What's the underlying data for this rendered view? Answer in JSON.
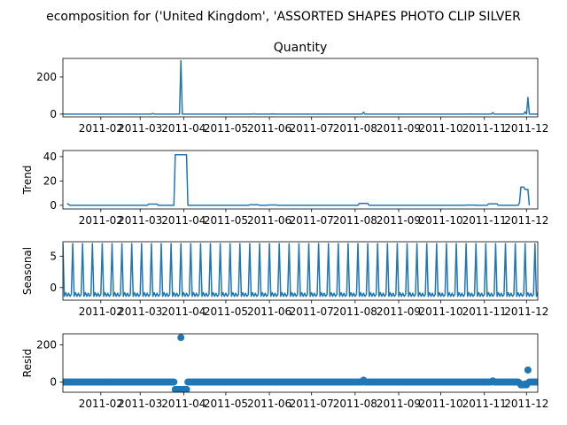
{
  "figure": {
    "title": "ecomposition for ('United Kingdom', 'ASSORTED SHAPES PHOTO CLIP SILVER"
  },
  "colors": {
    "series": "#1f77b4",
    "axes": "#000000",
    "background": "#ffffff"
  },
  "chart_data": [
    {
      "type": "line",
      "title": "Quantity",
      "ylabel": "",
      "x_range": [
        "2011-01-05",
        "2011-12-09"
      ],
      "ylim": [
        -15,
        300
      ],
      "yticks": [
        0,
        200
      ],
      "xtick_labels": [
        "2011-02",
        "2011-03",
        "2011-04",
        "2011-05",
        "2011-06",
        "2011-07",
        "2011-08",
        "2011-09",
        "2011-10",
        "2011-11",
        "2011-12"
      ],
      "grid": false,
      "points": [
        [
          "2011-01-05",
          0
        ],
        [
          "2011-03-09",
          0
        ],
        [
          "2011-03-10",
          3
        ],
        [
          "2011-03-11",
          0
        ],
        [
          "2011-03-29",
          0
        ],
        [
          "2011-03-30",
          288
        ],
        [
          "2011-03-31",
          0
        ],
        [
          "2011-05-20",
          0
        ],
        [
          "2011-05-21",
          2
        ],
        [
          "2011-05-22",
          0
        ],
        [
          "2011-06-02",
          0
        ],
        [
          "2011-06-03",
          1
        ],
        [
          "2011-06-04",
          0
        ],
        [
          "2011-08-06",
          0
        ],
        [
          "2011-08-07",
          10
        ],
        [
          "2011-08-08",
          0
        ],
        [
          "2011-10-21",
          0
        ],
        [
          "2011-10-22",
          1
        ],
        [
          "2011-10-23",
          0
        ],
        [
          "2011-11-06",
          0
        ],
        [
          "2011-11-07",
          8
        ],
        [
          "2011-11-08",
          0
        ],
        [
          "2011-11-29",
          0
        ],
        [
          "2011-11-30",
          12
        ],
        [
          "2011-12-01",
          0
        ],
        [
          "2011-12-02",
          90
        ],
        [
          "2011-12-03",
          0
        ],
        [
          "2011-12-09",
          0
        ]
      ]
    },
    {
      "type": "line",
      "title": "",
      "ylabel": "Trend",
      "x_range": [
        "2011-01-05",
        "2011-12-09"
      ],
      "ylim": [
        -3,
        45
      ],
      "yticks": [
        0,
        20,
        40
      ],
      "xtick_labels": [
        "2011-02",
        "2011-03",
        "2011-04",
        "2011-05",
        "2011-06",
        "2011-07",
        "2011-08",
        "2011-09",
        "2011-10",
        "2011-11",
        "2011-12"
      ],
      "grid": false,
      "points": [
        [
          "2011-01-08",
          1.5
        ],
        [
          "2011-01-10",
          0
        ],
        [
          "2011-03-06",
          0
        ],
        [
          "2011-03-07",
          1
        ],
        [
          "2011-03-13",
          1
        ],
        [
          "2011-03-14",
          0
        ],
        [
          "2011-03-25",
          0
        ],
        [
          "2011-03-26",
          41.5
        ],
        [
          "2011-04-03",
          41.5
        ],
        [
          "2011-04-04",
          0
        ],
        [
          "2011-05-17",
          0
        ],
        [
          "2011-05-18",
          0.5
        ],
        [
          "2011-05-24",
          0.5
        ],
        [
          "2011-05-25",
          0
        ],
        [
          "2011-05-30",
          0
        ],
        [
          "2011-05-31",
          0.3
        ],
        [
          "2011-06-06",
          0.3
        ],
        [
          "2011-06-07",
          0
        ],
        [
          "2011-08-03",
          0
        ],
        [
          "2011-08-04",
          1.5
        ],
        [
          "2011-08-10",
          1.5
        ],
        [
          "2011-08-11",
          0
        ],
        [
          "2011-10-18",
          0
        ],
        [
          "2011-10-19",
          0.2
        ],
        [
          "2011-10-25",
          0.2
        ],
        [
          "2011-10-26",
          0
        ],
        [
          "2011-11-03",
          0
        ],
        [
          "2011-11-04",
          1.2
        ],
        [
          "2011-11-10",
          1.2
        ],
        [
          "2011-11-11",
          0
        ],
        [
          "2011-11-25",
          0
        ],
        [
          "2011-11-26",
          2
        ],
        [
          "2011-11-27",
          15
        ],
        [
          "2011-11-29",
          15
        ],
        [
          "2011-11-30",
          13
        ],
        [
          "2011-12-01",
          13
        ],
        [
          "2011-12-02",
          13
        ],
        [
          "2011-12-03",
          0
        ]
      ]
    },
    {
      "type": "line",
      "title": "",
      "ylabel": "Seasonal",
      "x_range": [
        "2011-01-05",
        "2011-12-09"
      ],
      "ylim": [
        -2,
        7.3
      ],
      "yticks": [
        0,
        5
      ],
      "xtick_labels": [
        "2011-02",
        "2011-03",
        "2011-04",
        "2011-05",
        "2011-06",
        "2011-07",
        "2011-08",
        "2011-09",
        "2011-10",
        "2011-11",
        "2011-12"
      ],
      "grid": false,
      "period_days": 7,
      "first_peak": "2011-01-05",
      "weekly_pattern": [
        7.0,
        -1.4,
        -0.8,
        -1.4,
        -0.9,
        -1.4,
        -1.1
      ]
    },
    {
      "type": "scatter",
      "title": "",
      "ylabel": "Resid",
      "x_range": [
        "2011-01-05",
        "2011-12-09"
      ],
      "ylim": [
        -55,
        260
      ],
      "yticks": [
        0,
        200
      ],
      "xtick_labels": [
        "2011-02",
        "2011-03",
        "2011-04",
        "2011-05",
        "2011-06",
        "2011-07",
        "2011-08",
        "2011-09",
        "2011-10",
        "2011-11",
        "2011-12"
      ],
      "grid": false,
      "baseline": 0,
      "outliers": [
        [
          "2011-03-26",
          -40
        ],
        [
          "2011-03-27",
          -40
        ],
        [
          "2011-03-28",
          -40
        ],
        [
          "2011-03-29",
          -40
        ],
        [
          "2011-03-30",
          240
        ],
        [
          "2011-03-31",
          -40
        ],
        [
          "2011-04-01",
          -40
        ],
        [
          "2011-04-02",
          -40
        ],
        [
          "2011-04-03",
          -40
        ],
        [
          "2011-08-07",
          10
        ],
        [
          "2011-11-07",
          6
        ],
        [
          "2011-11-26",
          -5
        ],
        [
          "2011-11-27",
          -15
        ],
        [
          "2011-11-28",
          -15
        ],
        [
          "2011-11-29",
          -15
        ],
        [
          "2011-11-30",
          -10
        ],
        [
          "2011-12-01",
          -15
        ],
        [
          "2011-12-02",
          65
        ]
      ]
    }
  ]
}
